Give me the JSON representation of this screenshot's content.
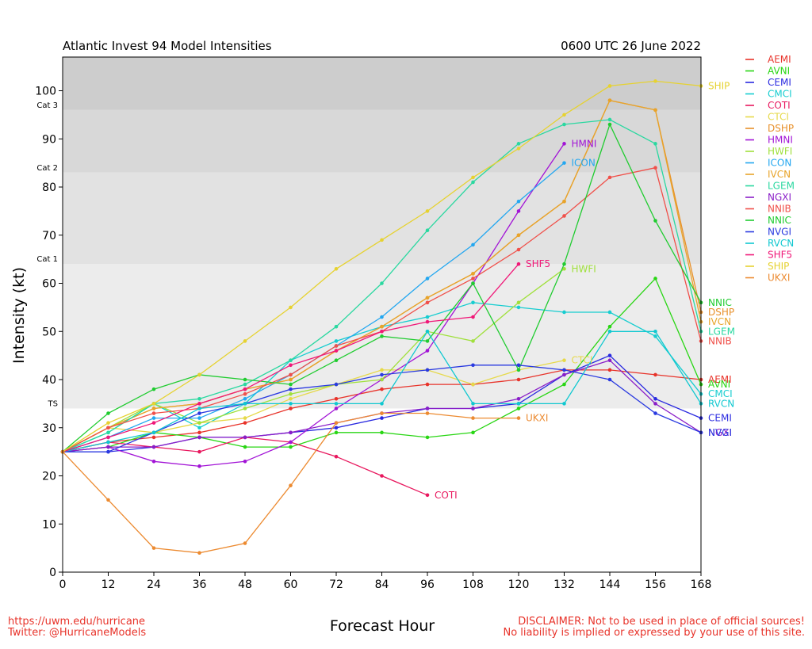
{
  "chart_data": {
    "type": "line",
    "title_left": "Atlantic Invest 94 Model Intensities",
    "title_right": "0600 UTC 26 June 2022",
    "xlabel": "Forecast Hour",
    "ylabel": "Intensity (kt)",
    "xlim": [
      0,
      168
    ],
    "ylim": [
      0,
      107
    ],
    "xticks": [
      0,
      12,
      24,
      36,
      48,
      60,
      72,
      84,
      96,
      108,
      120,
      132,
      144,
      156,
      168
    ],
    "yticks": [
      0,
      10,
      20,
      30,
      40,
      50,
      60,
      70,
      80,
      90,
      100
    ],
    "bands": [
      {
        "from": 0,
        "to": 34,
        "color": "#ffffff"
      },
      {
        "from": 34,
        "to": 64,
        "color": "#ececec"
      },
      {
        "from": 64,
        "to": 83,
        "color": "#e2e2e2"
      },
      {
        "from": 83,
        "to": 96,
        "color": "#d8d8d8"
      },
      {
        "from": 96,
        "to": 107,
        "color": "#cdcdcd"
      }
    ],
    "category_labels": [
      {
        "label": "TS",
        "value": 34
      },
      {
        "label": "Cat 1",
        "value": 64
      },
      {
        "label": "Cat 2",
        "value": 83
      },
      {
        "label": "Cat 3",
        "value": 96
      }
    ],
    "legend_placement": "right",
    "series": [
      {
        "name": "AEMI",
        "color": "#e8332a",
        "x": [
          0,
          12,
          24,
          36,
          48,
          60,
          72,
          84,
          96,
          108,
          120,
          132,
          144,
          156,
          168
        ],
        "y": [
          25,
          27,
          28,
          29,
          31,
          34,
          36,
          38,
          39,
          39,
          40,
          42,
          42,
          41,
          40
        ],
        "end_label": true
      },
      {
        "name": "AVNI",
        "color": "#29d614",
        "x": [
          0,
          12,
          24,
          36,
          48,
          60,
          72,
          84,
          96,
          108,
          120,
          132,
          144,
          156,
          168
        ],
        "y": [
          25,
          26,
          29,
          28,
          26,
          26,
          29,
          29,
          28,
          29,
          34,
          39,
          51,
          61,
          39
        ],
        "end_label": true
      },
      {
        "name": "CEMI",
        "color": "#2a2ae0",
        "x": [
          0,
          12,
          24,
          36,
          48,
          60,
          72,
          84,
          96,
          108,
          120,
          132,
          144,
          156,
          168
        ],
        "y": [
          25,
          25,
          26,
          28,
          28,
          29,
          30,
          32,
          34,
          34,
          35,
          41,
          45,
          36,
          32
        ],
        "end_label": true
      },
      {
        "name": "CMCI",
        "color": "#17cdd0",
        "x": [
          0,
          12,
          24,
          36,
          48,
          60,
          72,
          84,
          96,
          108,
          120,
          132,
          144,
          156,
          168
        ],
        "y": [
          25,
          29,
          35,
          30,
          35,
          44,
          48,
          51,
          53,
          56,
          55,
          54,
          54,
          49,
          37
        ],
        "end_label": true
      },
      {
        "name": "COTI",
        "color": "#e8185e",
        "x": [
          0,
          12,
          24,
          36,
          48,
          60,
          72,
          84,
          96
        ],
        "y": [
          25,
          27,
          26,
          25,
          28,
          27,
          24,
          20,
          16
        ],
        "end_label": true
      },
      {
        "name": "CTCI",
        "color": "#e6d94a",
        "x": [
          0,
          12,
          24,
          36,
          48,
          60,
          72,
          84,
          96,
          108,
          120,
          132
        ],
        "y": [
          25,
          30,
          29,
          31,
          32,
          36,
          39,
          42,
          42,
          39,
          42,
          44
        ],
        "end_label": true
      },
      {
        "name": "DSHP",
        "color": "#e8902a",
        "x": [
          0,
          12,
          24,
          36,
          48,
          60,
          72,
          84,
          96,
          108,
          120,
          132,
          144,
          156,
          168
        ],
        "y": [
          25,
          30,
          34,
          35,
          38,
          40,
          46,
          51,
          57,
          62,
          70,
          77,
          98,
          96,
          54
        ],
        "end_label": true
      },
      {
        "name": "HMNI",
        "color": "#a214d6",
        "x": [
          0,
          12,
          24,
          36,
          48,
          60,
          72,
          84,
          96,
          108,
          120,
          132
        ],
        "y": [
          25,
          26,
          23,
          22,
          23,
          27,
          34,
          40,
          46,
          60,
          75,
          89
        ],
        "end_label": true
      },
      {
        "name": "HWFI",
        "color": "#a0e03c",
        "x": [
          0,
          12,
          24,
          36,
          48,
          60,
          72,
          84,
          96,
          108,
          120,
          132
        ],
        "y": [
          25,
          30,
          35,
          31,
          34,
          37,
          39,
          40,
          50,
          48,
          56,
          63
        ],
        "end_label": true
      },
      {
        "name": "ICON",
        "color": "#23a7f0",
        "x": [
          0,
          12,
          24,
          36,
          48,
          60,
          72,
          84,
          96,
          108,
          120,
          132
        ],
        "y": [
          25,
          28,
          32,
          32,
          36,
          41,
          47,
          53,
          61,
          68,
          77,
          85
        ],
        "end_label": true
      },
      {
        "name": "IVCN",
        "color": "#e8a42a",
        "x": [
          0,
          12,
          24,
          36,
          48,
          60,
          72,
          84,
          96,
          108,
          120,
          132,
          144,
          156,
          168
        ],
        "y": [
          25,
          30,
          34,
          35,
          38,
          40,
          46,
          51,
          57,
          62,
          70,
          77,
          98,
          96,
          52
        ],
        "end_label": true
      },
      {
        "name": "LGEM",
        "color": "#2ad8a0",
        "x": [
          0,
          12,
          24,
          36,
          48,
          60,
          72,
          84,
          96,
          108,
          120,
          132,
          144,
          156,
          168
        ],
        "y": [
          25,
          29,
          35,
          36,
          39,
          44,
          51,
          60,
          71,
          81,
          89,
          93,
          94,
          89,
          50
        ],
        "end_label": true
      },
      {
        "name": "NGXI",
        "color": "#8a1ec8",
        "x": [
          0,
          12,
          24,
          36,
          48,
          60,
          72,
          84,
          96,
          108,
          120,
          132,
          144,
          156,
          168
        ],
        "y": [
          25,
          26,
          26,
          28,
          28,
          29,
          31,
          33,
          34,
          34,
          36,
          41,
          44,
          35,
          29
        ],
        "end_label": true
      },
      {
        "name": "NNIB",
        "color": "#f0504a",
        "x": [
          0,
          12,
          24,
          36,
          48,
          60,
          72,
          84,
          96,
          108,
          120,
          132,
          144,
          156,
          168
        ],
        "y": [
          25,
          30,
          33,
          34,
          37,
          41,
          47,
          50,
          56,
          61,
          67,
          74,
          82,
          84,
          48
        ],
        "end_label": true
      },
      {
        "name": "NNIC",
        "color": "#20cc30",
        "x": [
          0,
          12,
          24,
          36,
          48,
          60,
          72,
          84,
          96,
          108,
          120,
          132,
          144,
          156,
          168
        ],
        "y": [
          25,
          33,
          38,
          41,
          40,
          39,
          44,
          49,
          48,
          60,
          42,
          64,
          93,
          73,
          56
        ],
        "end_label": true
      },
      {
        "name": "NVGI",
        "color": "#2a3ae0",
        "x": [
          0,
          12,
          24,
          36,
          48,
          60,
          72,
          84,
          96,
          108,
          120,
          132,
          144,
          156,
          168
        ],
        "y": [
          25,
          25,
          29,
          33,
          35,
          38,
          39,
          41,
          42,
          43,
          43,
          42,
          40,
          33,
          29
        ],
        "end_label": true
      },
      {
        "name": "RVCN",
        "color": "#10c8d0",
        "x": [
          0,
          12,
          24,
          36,
          48,
          60,
          72,
          84,
          96,
          108,
          120,
          132,
          144,
          156,
          168
        ],
        "y": [
          25,
          27,
          29,
          34,
          35,
          35,
          35,
          35,
          50,
          35,
          35,
          35,
          50,
          50,
          35
        ],
        "end_label": true
      },
      {
        "name": "SHF5",
        "color": "#f01878",
        "x": [
          0,
          12,
          24,
          36,
          48,
          60,
          72,
          84,
          96,
          108,
          120
        ],
        "y": [
          25,
          28,
          31,
          35,
          38,
          43,
          46,
          50,
          52,
          53,
          64
        ],
        "end_label": true
      },
      {
        "name": "SHIP",
        "color": "#e6d230",
        "x": [
          0,
          12,
          24,
          36,
          48,
          60,
          72,
          84,
          96,
          108,
          120,
          132,
          144,
          156,
          168
        ],
        "y": [
          25,
          31,
          35,
          41,
          48,
          55,
          63,
          69,
          75,
          82,
          88,
          95,
          101,
          102,
          101
        ],
        "end_label": true
      },
      {
        "name": "UKXI",
        "color": "#ec8a30",
        "x": [
          0,
          12,
          24,
          36,
          48,
          60,
          72,
          84,
          96,
          108,
          120
        ],
        "y": [
          25,
          15,
          5,
          4,
          6,
          18,
          31,
          33,
          33,
          32,
          32
        ],
        "end_label": true
      }
    ]
  },
  "footer": {
    "left_line1": "https://uwm.edu/hurricane",
    "left_line2": "Twitter: @HurricaneModels",
    "right_line1": "DISCLAIMER: Not to be used in place of official sources!",
    "right_line2": "No liability is implied or expressed by your use of this site."
  }
}
